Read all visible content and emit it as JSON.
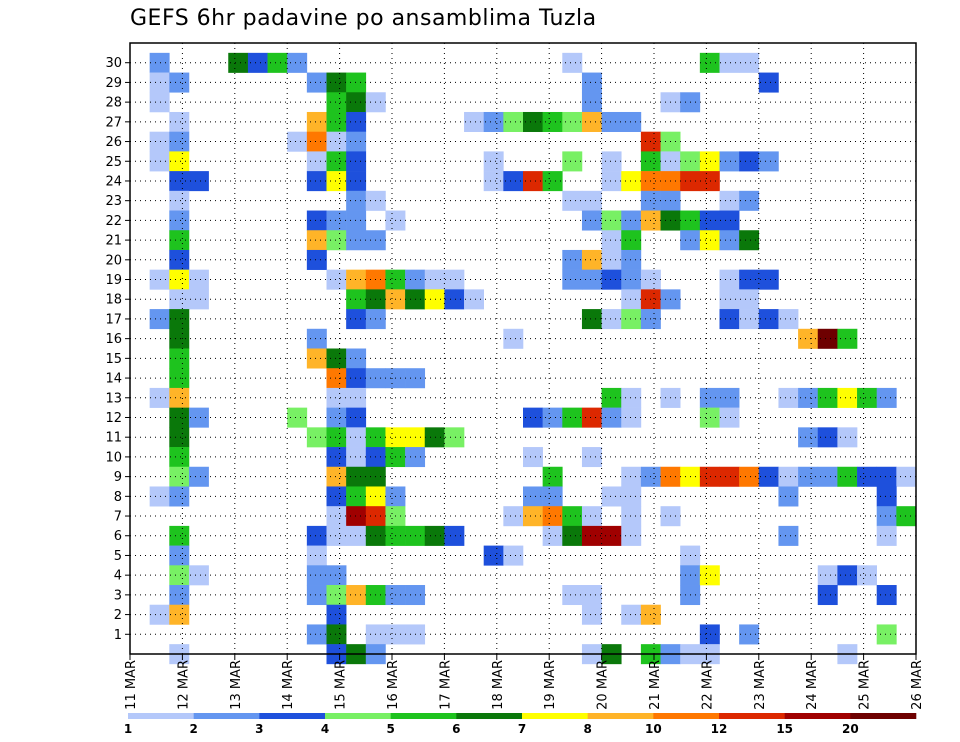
{
  "chart_data": {
    "type": "heatmap",
    "title": "GEFS 6hr padavine po ansamblima Tuzla",
    "y_ticks": [
      "1",
      "2",
      "3",
      "4",
      "5",
      "6",
      "7",
      "8",
      "9",
      "10",
      "11",
      "12",
      "13",
      "14",
      "15",
      "16",
      "17",
      "18",
      "19",
      "20",
      "21",
      "22",
      "23",
      "24",
      "25",
      "26",
      "27",
      "28",
      "29",
      "30"
    ],
    "x_ticks": [
      "11 MAR",
      "12 MAR",
      "13 MAR",
      "14 MAR",
      "15 MAR",
      "16 MAR",
      "17 MAR",
      "18 MAR",
      "19 MAR",
      "20 MAR",
      "21 MAR",
      "22 MAR",
      "23 MAR",
      "24 MAR",
      "25 MAR",
      "26 MAR"
    ],
    "ylim": [
      0,
      31
    ],
    "grid": true,
    "colorbar": {
      "labels": [
        "1",
        "2",
        "3",
        "4",
        "5",
        "6",
        "7",
        "8",
        "10",
        "12",
        "15",
        "20"
      ],
      "colors": [
        "#b4c8fa",
        "#6496f0",
        "#1e50dc",
        "#78f064",
        "#1ec31e",
        "#0a780a",
        "#ffff00",
        "#ffb428",
        "#ff7800",
        "#dc2800",
        "#a00000",
        "#6e0000"
      ]
    },
    "cells": [
      [
        1,
        30,
        2
      ],
      [
        5,
        30,
        6
      ],
      [
        6,
        30,
        3
      ],
      [
        7,
        30,
        5
      ],
      [
        8,
        30,
        2
      ],
      [
        22,
        30,
        1
      ],
      [
        29,
        30,
        5
      ],
      [
        30,
        30,
        1
      ],
      [
        31,
        30,
        1
      ],
      [
        1,
        29,
        1
      ],
      [
        2,
        29,
        2
      ],
      [
        9,
        29,
        2
      ],
      [
        10,
        29,
        6
      ],
      [
        11,
        29,
        5
      ],
      [
        23,
        29,
        2
      ],
      [
        32,
        29,
        3
      ],
      [
        1,
        28,
        1
      ],
      [
        10,
        28,
        5
      ],
      [
        11,
        28,
        6
      ],
      [
        12,
        28,
        1
      ],
      [
        23,
        28,
        2
      ],
      [
        27,
        28,
        1
      ],
      [
        28,
        28,
        2
      ],
      [
        2,
        27,
        1
      ],
      [
        9,
        27,
        8
      ],
      [
        10,
        27,
        5
      ],
      [
        11,
        27,
        3
      ],
      [
        17,
        27,
        1
      ],
      [
        18,
        27,
        2
      ],
      [
        19,
        27,
        4
      ],
      [
        20,
        27,
        6
      ],
      [
        21,
        27,
        5
      ],
      [
        22,
        27,
        4
      ],
      [
        23,
        27,
        8
      ],
      [
        24,
        27,
        2
      ],
      [
        25,
        27,
        2
      ],
      [
        1,
        26,
        1
      ],
      [
        2,
        26,
        2
      ],
      [
        8,
        26,
        1
      ],
      [
        9,
        26,
        9
      ],
      [
        10,
        26,
        1
      ],
      [
        11,
        26,
        2
      ],
      [
        26,
        26,
        10
      ],
      [
        27,
        26,
        4
      ],
      [
        1,
        25,
        1
      ],
      [
        2,
        25,
        7
      ],
      [
        9,
        25,
        1
      ],
      [
        10,
        25,
        5
      ],
      [
        11,
        25,
        3
      ],
      [
        18,
        25,
        1
      ],
      [
        22,
        25,
        4
      ],
      [
        24,
        25,
        1
      ],
      [
        26,
        25,
        5
      ],
      [
        27,
        25,
        1
      ],
      [
        28,
        25,
        4
      ],
      [
        29,
        25,
        7
      ],
      [
        30,
        25,
        2
      ],
      [
        31,
        25,
        3
      ],
      [
        32,
        25,
        2
      ],
      [
        2,
        24,
        3
      ],
      [
        3,
        24,
        3
      ],
      [
        9,
        24,
        3
      ],
      [
        10,
        24,
        7
      ],
      [
        11,
        24,
        3
      ],
      [
        18,
        24,
        1
      ],
      [
        19,
        24,
        3
      ],
      [
        20,
        24,
        10
      ],
      [
        21,
        24,
        5
      ],
      [
        24,
        24,
        1
      ],
      [
        25,
        24,
        7
      ],
      [
        26,
        24,
        9
      ],
      [
        27,
        24,
        9
      ],
      [
        28,
        24,
        10
      ],
      [
        29,
        24,
        10
      ],
      [
        2,
        23,
        1
      ],
      [
        11,
        23,
        2
      ],
      [
        12,
        23,
        1
      ],
      [
        22,
        23,
        1
      ],
      [
        23,
        23,
        1
      ],
      [
        26,
        23,
        2
      ],
      [
        27,
        23,
        2
      ],
      [
        30,
        23,
        1
      ],
      [
        31,
        23,
        2
      ],
      [
        2,
        22,
        2
      ],
      [
        9,
        22,
        3
      ],
      [
        10,
        22,
        2
      ],
      [
        11,
        22,
        2
      ],
      [
        13,
        22,
        1
      ],
      [
        23,
        22,
        2
      ],
      [
        24,
        22,
        4
      ],
      [
        25,
        22,
        2
      ],
      [
        26,
        22,
        8
      ],
      [
        27,
        22,
        6
      ],
      [
        28,
        22,
        5
      ],
      [
        29,
        22,
        3
      ],
      [
        30,
        22,
        3
      ],
      [
        2,
        21,
        5
      ],
      [
        9,
        21,
        8
      ],
      [
        10,
        21,
        4
      ],
      [
        11,
        21,
        2
      ],
      [
        12,
        21,
        2
      ],
      [
        24,
        21,
        1
      ],
      [
        25,
        21,
        5
      ],
      [
        28,
        21,
        2
      ],
      [
        29,
        21,
        7
      ],
      [
        30,
        21,
        2
      ],
      [
        31,
        21,
        6
      ],
      [
        2,
        20,
        3
      ],
      [
        9,
        20,
        3
      ],
      [
        22,
        20,
        2
      ],
      [
        23,
        20,
        8
      ],
      [
        24,
        20,
        1
      ],
      [
        25,
        20,
        2
      ],
      [
        1,
        19,
        1
      ],
      [
        2,
        19,
        7
      ],
      [
        3,
        19,
        1
      ],
      [
        10,
        19,
        1
      ],
      [
        11,
        19,
        8
      ],
      [
        12,
        19,
        9
      ],
      [
        13,
        19,
        5
      ],
      [
        14,
        19,
        2
      ],
      [
        15,
        19,
        1
      ],
      [
        16,
        19,
        1
      ],
      [
        22,
        19,
        2
      ],
      [
        23,
        19,
        2
      ],
      [
        24,
        19,
        3
      ],
      [
        25,
        19,
        2
      ],
      [
        26,
        19,
        1
      ],
      [
        30,
        19,
        1
      ],
      [
        31,
        19,
        3
      ],
      [
        32,
        19,
        3
      ],
      [
        2,
        18,
        1
      ],
      [
        3,
        18,
        1
      ],
      [
        11,
        18,
        5
      ],
      [
        12,
        18,
        6
      ],
      [
        13,
        18,
        8
      ],
      [
        14,
        18,
        6
      ],
      [
        15,
        18,
        7
      ],
      [
        16,
        18,
        3
      ],
      [
        17,
        18,
        1
      ],
      [
        25,
        18,
        1
      ],
      [
        26,
        18,
        10
      ],
      [
        27,
        18,
        2
      ],
      [
        30,
        18,
        1
      ],
      [
        31,
        18,
        1
      ],
      [
        1,
        17,
        2
      ],
      [
        2,
        17,
        6
      ],
      [
        11,
        17,
        3
      ],
      [
        12,
        17,
        2
      ],
      [
        23,
        17,
        6
      ],
      [
        24,
        17,
        1
      ],
      [
        25,
        17,
        4
      ],
      [
        26,
        17,
        2
      ],
      [
        30,
        17,
        3
      ],
      [
        31,
        17,
        1
      ],
      [
        32,
        17,
        3
      ],
      [
        33,
        17,
        1
      ],
      [
        2,
        16,
        6
      ],
      [
        9,
        16,
        2
      ],
      [
        19,
        16,
        1
      ],
      [
        34,
        16,
        8
      ],
      [
        35,
        16,
        12
      ],
      [
        36,
        16,
        5
      ],
      [
        2,
        15,
        5
      ],
      [
        9,
        15,
        8
      ],
      [
        10,
        15,
        6
      ],
      [
        11,
        15,
        2
      ],
      [
        2,
        14,
        5
      ],
      [
        10,
        14,
        9
      ],
      [
        11,
        14,
        3
      ],
      [
        12,
        14,
        2
      ],
      [
        13,
        14,
        2
      ],
      [
        14,
        14,
        2
      ],
      [
        1,
        13,
        1
      ],
      [
        2,
        13,
        8
      ],
      [
        10,
        13,
        1
      ],
      [
        11,
        13,
        1
      ],
      [
        24,
        13,
        5
      ],
      [
        25,
        13,
        1
      ],
      [
        27,
        13,
        1
      ],
      [
        29,
        13,
        2
      ],
      [
        30,
        13,
        2
      ],
      [
        33,
        13,
        1
      ],
      [
        34,
        13,
        2
      ],
      [
        35,
        13,
        5
      ],
      [
        36,
        13,
        7
      ],
      [
        37,
        13,
        5
      ],
      [
        38,
        13,
        2
      ],
      [
        2,
        12,
        6
      ],
      [
        3,
        12,
        2
      ],
      [
        8,
        12,
        4
      ],
      [
        10,
        12,
        2
      ],
      [
        11,
        12,
        3
      ],
      [
        20,
        12,
        3
      ],
      [
        21,
        12,
        2
      ],
      [
        22,
        12,
        5
      ],
      [
        23,
        12,
        10
      ],
      [
        24,
        12,
        2
      ],
      [
        25,
        12,
        1
      ],
      [
        29,
        12,
        4
      ],
      [
        30,
        12,
        1
      ],
      [
        2,
        11,
        6
      ],
      [
        9,
        11,
        4
      ],
      [
        10,
        11,
        5
      ],
      [
        11,
        11,
        1
      ],
      [
        12,
        11,
        5
      ],
      [
        13,
        11,
        7
      ],
      [
        14,
        11,
        7
      ],
      [
        15,
        11,
        6
      ],
      [
        16,
        11,
        4
      ],
      [
        34,
        11,
        2
      ],
      [
        35,
        11,
        3
      ],
      [
        36,
        11,
        1
      ],
      [
        2,
        10,
        5
      ],
      [
        10,
        10,
        3
      ],
      [
        11,
        10,
        1
      ],
      [
        12,
        10,
        3
      ],
      [
        13,
        10,
        5
      ],
      [
        14,
        10,
        2
      ],
      [
        20,
        10,
        1
      ],
      [
        23,
        10,
        1
      ],
      [
        2,
        9,
        4
      ],
      [
        3,
        9,
        2
      ],
      [
        10,
        9,
        8
      ],
      [
        11,
        9,
        6
      ],
      [
        12,
        9,
        6
      ],
      [
        21,
        9,
        5
      ],
      [
        25,
        9,
        1
      ],
      [
        26,
        9,
        2
      ],
      [
        27,
        9,
        9
      ],
      [
        28,
        9,
        7
      ],
      [
        29,
        9,
        10
      ],
      [
        30,
        9,
        10
      ],
      [
        31,
        9,
        9
      ],
      [
        32,
        9,
        3
      ],
      [
        33,
        9,
        1
      ],
      [
        34,
        9,
        2
      ],
      [
        35,
        9,
        2
      ],
      [
        36,
        9,
        5
      ],
      [
        37,
        9,
        3
      ],
      [
        38,
        9,
        3
      ],
      [
        39,
        9,
        1
      ],
      [
        1,
        8,
        1
      ],
      [
        2,
        8,
        2
      ],
      [
        10,
        8,
        3
      ],
      [
        11,
        8,
        5
      ],
      [
        12,
        8,
        7
      ],
      [
        13,
        8,
        2
      ],
      [
        20,
        8,
        2
      ],
      [
        21,
        8,
        2
      ],
      [
        24,
        8,
        1
      ],
      [
        25,
        8,
        1
      ],
      [
        33,
        8,
        2
      ],
      [
        38,
        8,
        3
      ],
      [
        10,
        7,
        1
      ],
      [
        11,
        7,
        11
      ],
      [
        12,
        7,
        10
      ],
      [
        13,
        7,
        4
      ],
      [
        19,
        7,
        1
      ],
      [
        20,
        7,
        8
      ],
      [
        21,
        7,
        9
      ],
      [
        22,
        7,
        5
      ],
      [
        23,
        7,
        1
      ],
      [
        25,
        7,
        1
      ],
      [
        27,
        7,
        1
      ],
      [
        38,
        7,
        2
      ],
      [
        39,
        7,
        5
      ],
      [
        2,
        6,
        5
      ],
      [
        9,
        6,
        3
      ],
      [
        10,
        6,
        1
      ],
      [
        11,
        6,
        1
      ],
      [
        12,
        6,
        6
      ],
      [
        13,
        6,
        5
      ],
      [
        14,
        6,
        5
      ],
      [
        15,
        6,
        6
      ],
      [
        16,
        6,
        3
      ],
      [
        21,
        6,
        1
      ],
      [
        22,
        6,
        6
      ],
      [
        23,
        6,
        11
      ],
      [
        24,
        6,
        11
      ],
      [
        25,
        6,
        1
      ],
      [
        33,
        6,
        2
      ],
      [
        38,
        6,
        1
      ],
      [
        2,
        5,
        2
      ],
      [
        9,
        5,
        1
      ],
      [
        18,
        5,
        3
      ],
      [
        19,
        5,
        1
      ],
      [
        28,
        5,
        1
      ],
      [
        2,
        4,
        4
      ],
      [
        3,
        4,
        1
      ],
      [
        9,
        4,
        2
      ],
      [
        10,
        4,
        2
      ],
      [
        28,
        4,
        2
      ],
      [
        29,
        4,
        7
      ],
      [
        35,
        4,
        1
      ],
      [
        36,
        4,
        3
      ],
      [
        37,
        4,
        1
      ],
      [
        2,
        3,
        2
      ],
      [
        9,
        3,
        2
      ],
      [
        10,
        3,
        4
      ],
      [
        11,
        3,
        8
      ],
      [
        12,
        3,
        5
      ],
      [
        13,
        3,
        2
      ],
      [
        14,
        3,
        2
      ],
      [
        22,
        3,
        1
      ],
      [
        23,
        3,
        1
      ],
      [
        28,
        3,
        2
      ],
      [
        35,
        3,
        3
      ],
      [
        38,
        3,
        3
      ],
      [
        1,
        2,
        1
      ],
      [
        2,
        2,
        8
      ],
      [
        10,
        2,
        3
      ],
      [
        23,
        2,
        1
      ],
      [
        25,
        2,
        1
      ],
      [
        26,
        2,
        8
      ],
      [
        9,
        1,
        2
      ],
      [
        10,
        1,
        6
      ],
      [
        12,
        1,
        1
      ],
      [
        13,
        1,
        1
      ],
      [
        14,
        1,
        1
      ],
      [
        29,
        1,
        3
      ],
      [
        31,
        1,
        2
      ],
      [
        38,
        1,
        4
      ],
      [
        2,
        0,
        1
      ],
      [
        10,
        0,
        3
      ],
      [
        11,
        0,
        6
      ],
      [
        12,
        0,
        2
      ],
      [
        23,
        0,
        1
      ],
      [
        24,
        0,
        6
      ],
      [
        26,
        0,
        5
      ],
      [
        27,
        0,
        2
      ],
      [
        28,
        0,
        1
      ],
      [
        29,
        0,
        1
      ],
      [
        36,
        0,
        1
      ]
    ]
  }
}
